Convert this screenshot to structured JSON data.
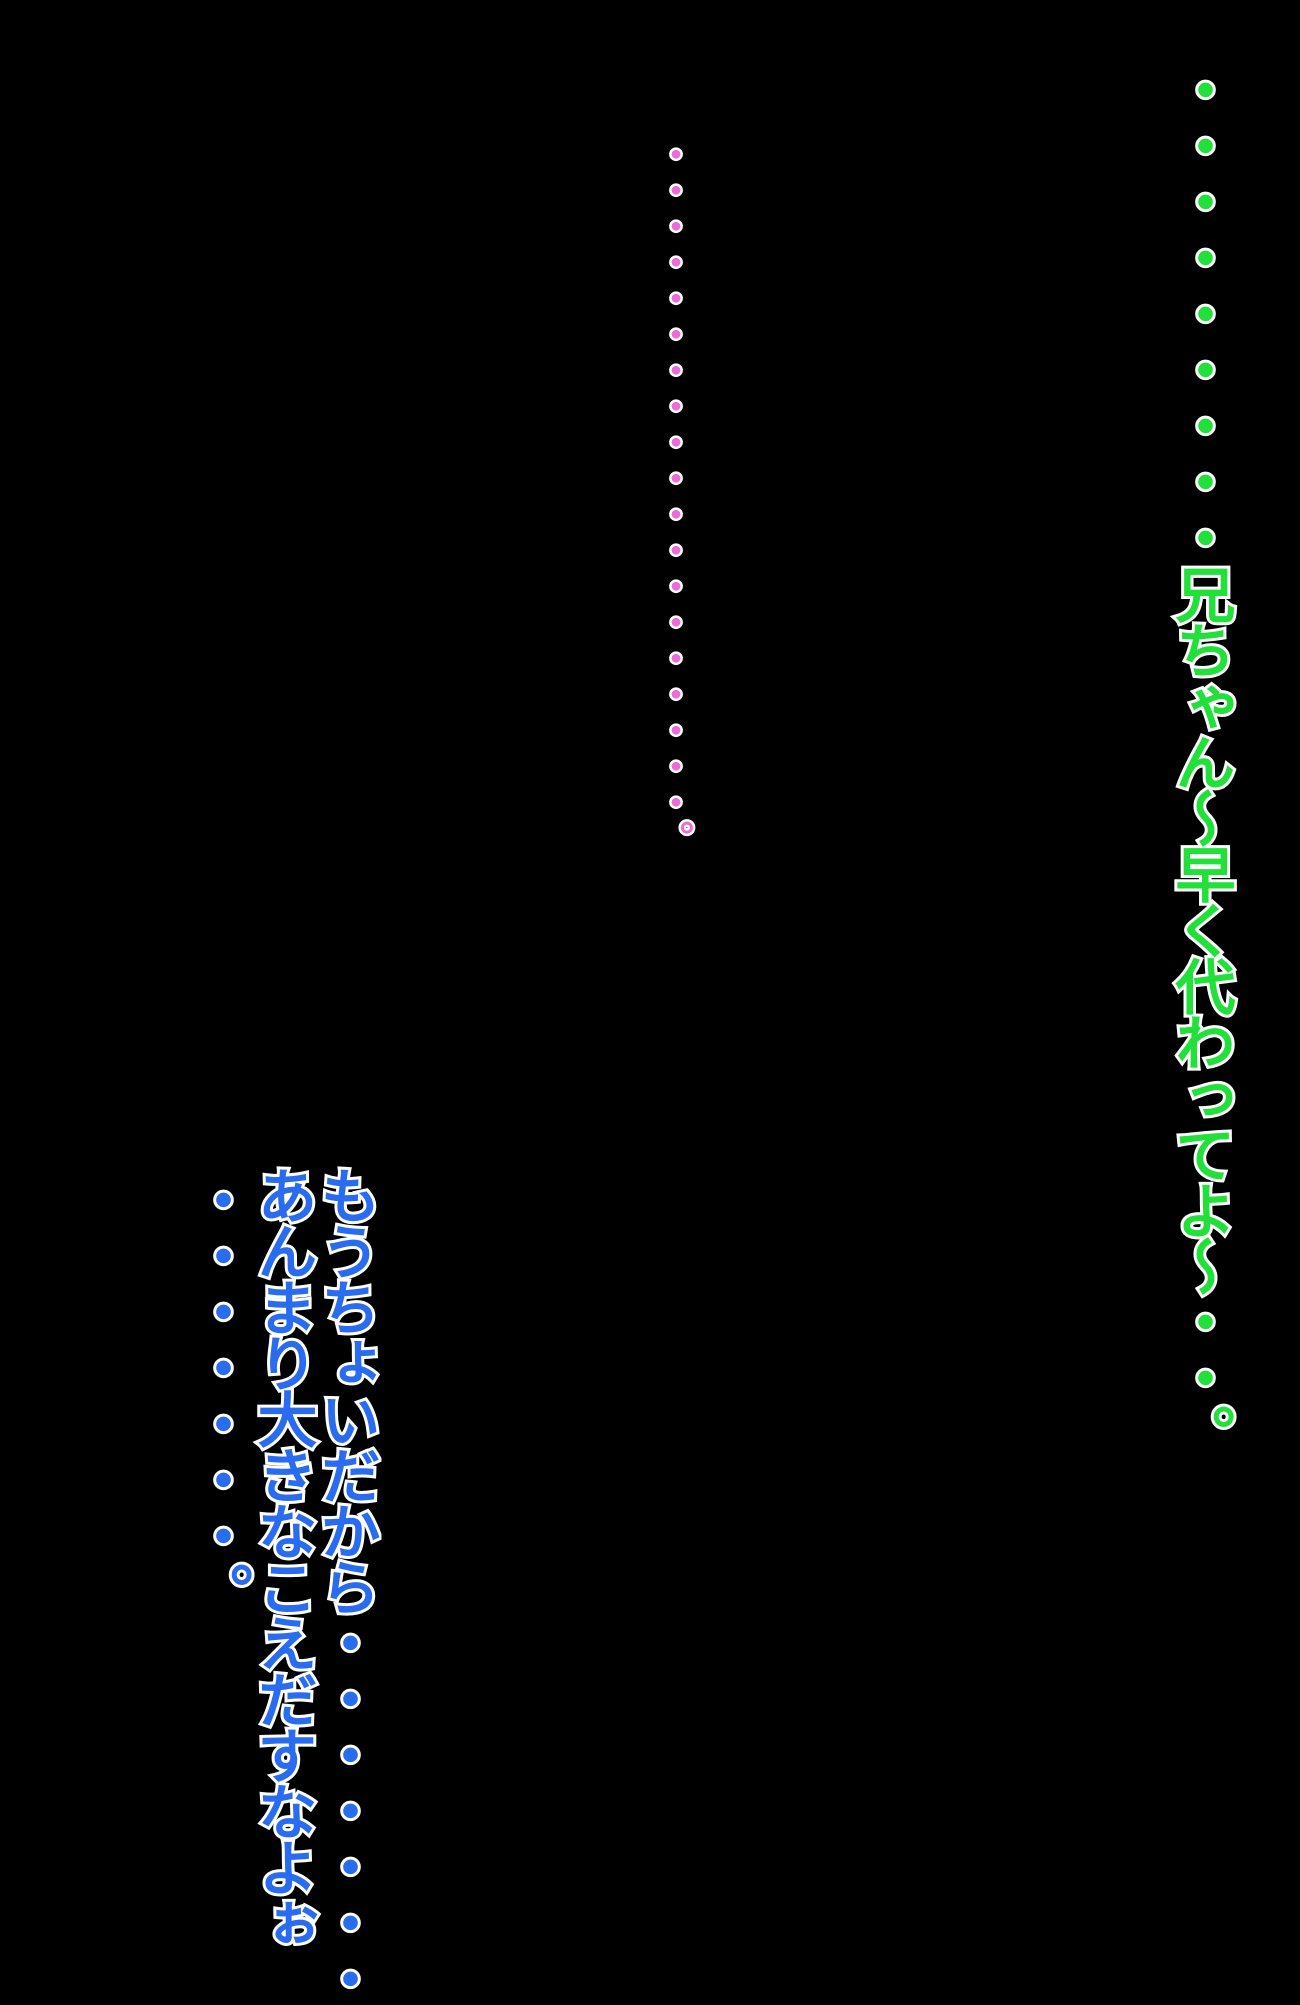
{
  "dialogue": {
    "green_line": "・・・・・・・・・兄ちゃん～早く代わってよ～・・。",
    "pink_line": "・・・・・・・・・・・・・・・・・・・。",
    "blue_line_1": "もうちょいだから・・・・・・・",
    "blue_line_2": "あんまり大きなこえだすなよぉ",
    "blue_line_3": "・・・・・・・。"
  },
  "colors": {
    "background": "#000000",
    "green_speaker": "#22e03a",
    "pink_speaker": "#f06ad6",
    "blue_speaker": "#2a6cf0",
    "outline": "#ffffff"
  }
}
